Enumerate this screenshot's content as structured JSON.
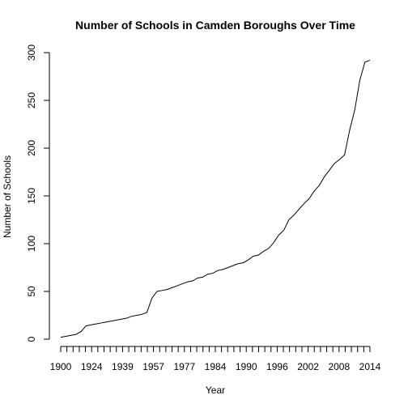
{
  "chart_data": {
    "type": "line",
    "title": "Number of Schools in Camden Boroughs Over Time",
    "xlabel": "Year",
    "ylabel": "Number of Schools",
    "xlim": [
      1900,
      2014
    ],
    "ylim": [
      0,
      300
    ],
    "x_tick_count": 40,
    "x_tick_labels": [
      {
        "index": 0,
        "label": "1900"
      },
      {
        "index": 5,
        "label": "1924"
      },
      {
        "index": 10,
        "label": "1939"
      },
      {
        "index": 15,
        "label": "1957"
      },
      {
        "index": 20,
        "label": "1977"
      },
      {
        "index": 25,
        "label": "1984"
      },
      {
        "index": 30,
        "label": "1990"
      },
      {
        "index": 35,
        "label": "1996"
      },
      {
        "index": 40,
        "label": "2002"
      },
      {
        "index": 45,
        "label": "2008"
      },
      {
        "index": 50,
        "label": "2014"
      }
    ],
    "y_ticks": [
      0,
      50,
      100,
      150,
      200,
      250,
      300
    ],
    "values": [
      2,
      3,
      4,
      5,
      8,
      14,
      15,
      16,
      17,
      18,
      19,
      20,
      21,
      22,
      24,
      25,
      26,
      28,
      43,
      50,
      51,
      52,
      54,
      56,
      58,
      60,
      61,
      64,
      65,
      68,
      69,
      72,
      73,
      75,
      77,
      79,
      80,
      83,
      87,
      88,
      92,
      95,
      101,
      109,
      114,
      125,
      130,
      136,
      142,
      147,
      155,
      161,
      170,
      177,
      184,
      188,
      193,
      219,
      240,
      271,
      290,
      292
    ],
    "grid": false,
    "legend": "none"
  }
}
